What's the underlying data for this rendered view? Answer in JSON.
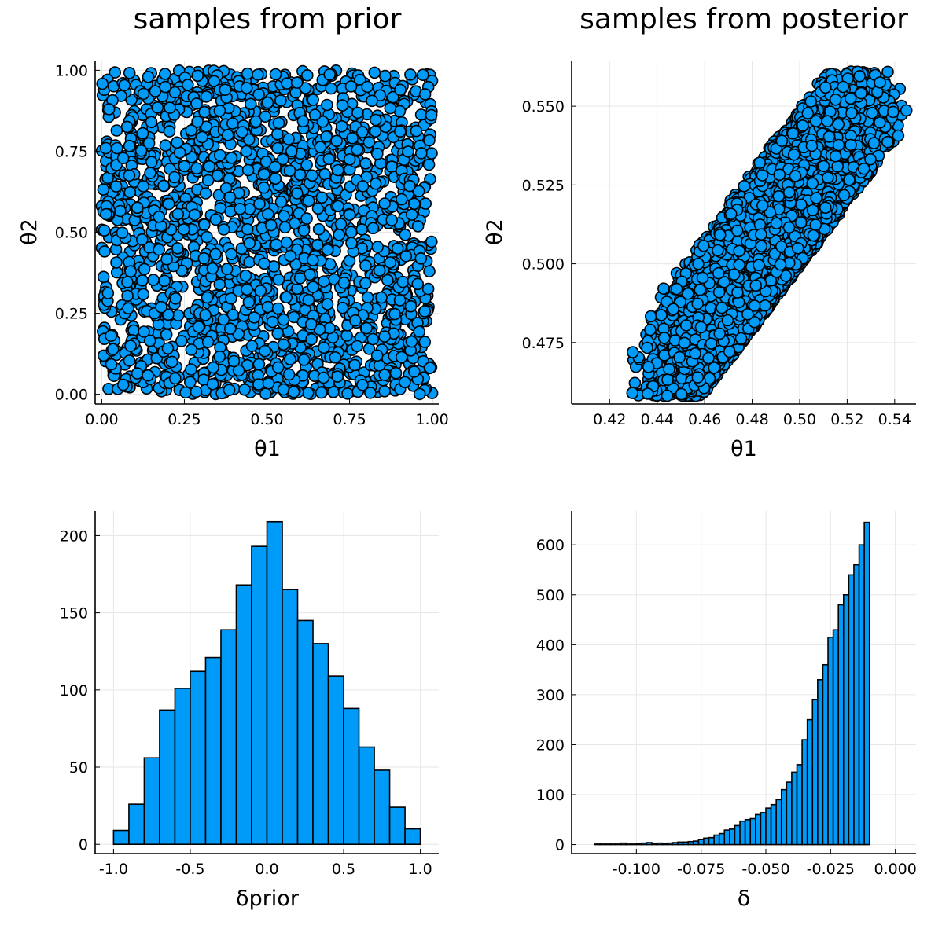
{
  "colors": {
    "marker_fill": "#009af9",
    "marker_stroke": "#000000",
    "grid": "#e6e6e6",
    "axis": "#000000"
  },
  "chart_data": [
    {
      "id": "prior-scatter",
      "type": "scatter",
      "title": "samples from prior",
      "xlabel": "θ1",
      "ylabel": "θ2",
      "xlim": [
        -0.02,
        1.02
      ],
      "ylim": [
        -0.03,
        1.03
      ],
      "xticks": [
        0.0,
        0.25,
        0.5,
        0.75,
        1.0
      ],
      "xtick_labels": [
        "0.00",
        "0.25",
        "0.50",
        "0.75",
        "1.00"
      ],
      "yticks": [
        0.0,
        0.25,
        0.5,
        0.75,
        1.0
      ],
      "ytick_labels": [
        "0.00",
        "0.25",
        "0.50",
        "0.75",
        "1.00"
      ],
      "grid": true,
      "legend": "none",
      "distribution": {
        "kind": "uniform",
        "x_range": [
          0,
          1
        ],
        "y_range": [
          0,
          1
        ],
        "approx_points": 2000
      }
    },
    {
      "id": "posterior-scatter",
      "type": "scatter",
      "title": "samples from posterior",
      "xlabel": "θ1",
      "ylabel": "θ2",
      "xlim": [
        0.404,
        0.549
      ],
      "ylim": [
        0.4555,
        0.5645
      ],
      "xticks": [
        0.42,
        0.44,
        0.46,
        0.48,
        0.5,
        0.52,
        0.54
      ],
      "xtick_labels": [
        "0.42",
        "0.44",
        "0.46",
        "0.48",
        "0.50",
        "0.52",
        "0.54"
      ],
      "yticks": [
        0.475,
        0.5,
        0.525,
        0.55
      ],
      "ytick_labels": [
        "0.475",
        "0.500",
        "0.525",
        "0.550"
      ],
      "grid": true,
      "legend": "none",
      "distribution": {
        "kind": "wedge",
        "constraint": "θ2 > θ1",
        "x_range": [
          0.408,
          0.546
        ],
        "y_range": [
          0.458,
          0.561
        ],
        "approx_points": 10000
      }
    },
    {
      "id": "prior-histogram",
      "type": "bar",
      "title": "",
      "xlabel": "δprior",
      "ylabel": "",
      "xlim": [
        -1.12,
        1.12
      ],
      "ylim": [
        -6,
        216
      ],
      "xticks": [
        -1.0,
        -0.5,
        0.0,
        0.5,
        1.0
      ],
      "xtick_labels": [
        "-1.0",
        "-0.5",
        "0.0",
        "0.5",
        "1.0"
      ],
      "yticks": [
        0,
        50,
        100,
        150,
        200
      ],
      "ytick_labels": [
        "0",
        "50",
        "100",
        "150",
        "200"
      ],
      "grid": true,
      "legend": "none",
      "bin_start": -1.0,
      "bin_width": 0.1,
      "values": [
        9,
        26,
        56,
        87,
        101,
        112,
        121,
        139,
        168,
        193,
        209,
        165,
        145,
        130,
        109,
        88,
        63,
        48,
        24,
        10
      ]
    },
    {
      "id": "posterior-histogram",
      "type": "bar",
      "title": "",
      "xlabel": "δ",
      "ylabel": "",
      "xlim": [
        -0.125,
        0.008
      ],
      "ylim": [
        -18,
        668
      ],
      "xticks": [
        -0.1,
        -0.075,
        -0.05,
        -0.025,
        0.0
      ],
      "xtick_labels": [
        "-0.100",
        "-0.075",
        "-0.050",
        "-0.025",
        "0.000"
      ],
      "yticks": [
        0,
        100,
        200,
        300,
        400,
        500,
        600
      ],
      "ytick_labels": [
        "0",
        "100",
        "200",
        "300",
        "400",
        "500",
        "600"
      ],
      "grid": true,
      "legend": "none",
      "bin_start": -0.116,
      "bin_width": 0.002,
      "values": [
        1,
        1,
        1,
        1,
        1,
        3,
        1,
        1,
        2,
        3,
        4,
        2,
        3,
        2,
        3,
        4,
        5,
        5,
        6,
        7,
        10,
        13,
        14,
        19,
        22,
        29,
        31,
        38,
        47,
        50,
        52,
        60,
        64,
        73,
        80,
        90,
        110,
        125,
        145,
        160,
        210,
        250,
        290,
        330,
        360,
        415,
        430,
        480,
        500,
        540,
        560,
        600,
        645
      ]
    }
  ]
}
